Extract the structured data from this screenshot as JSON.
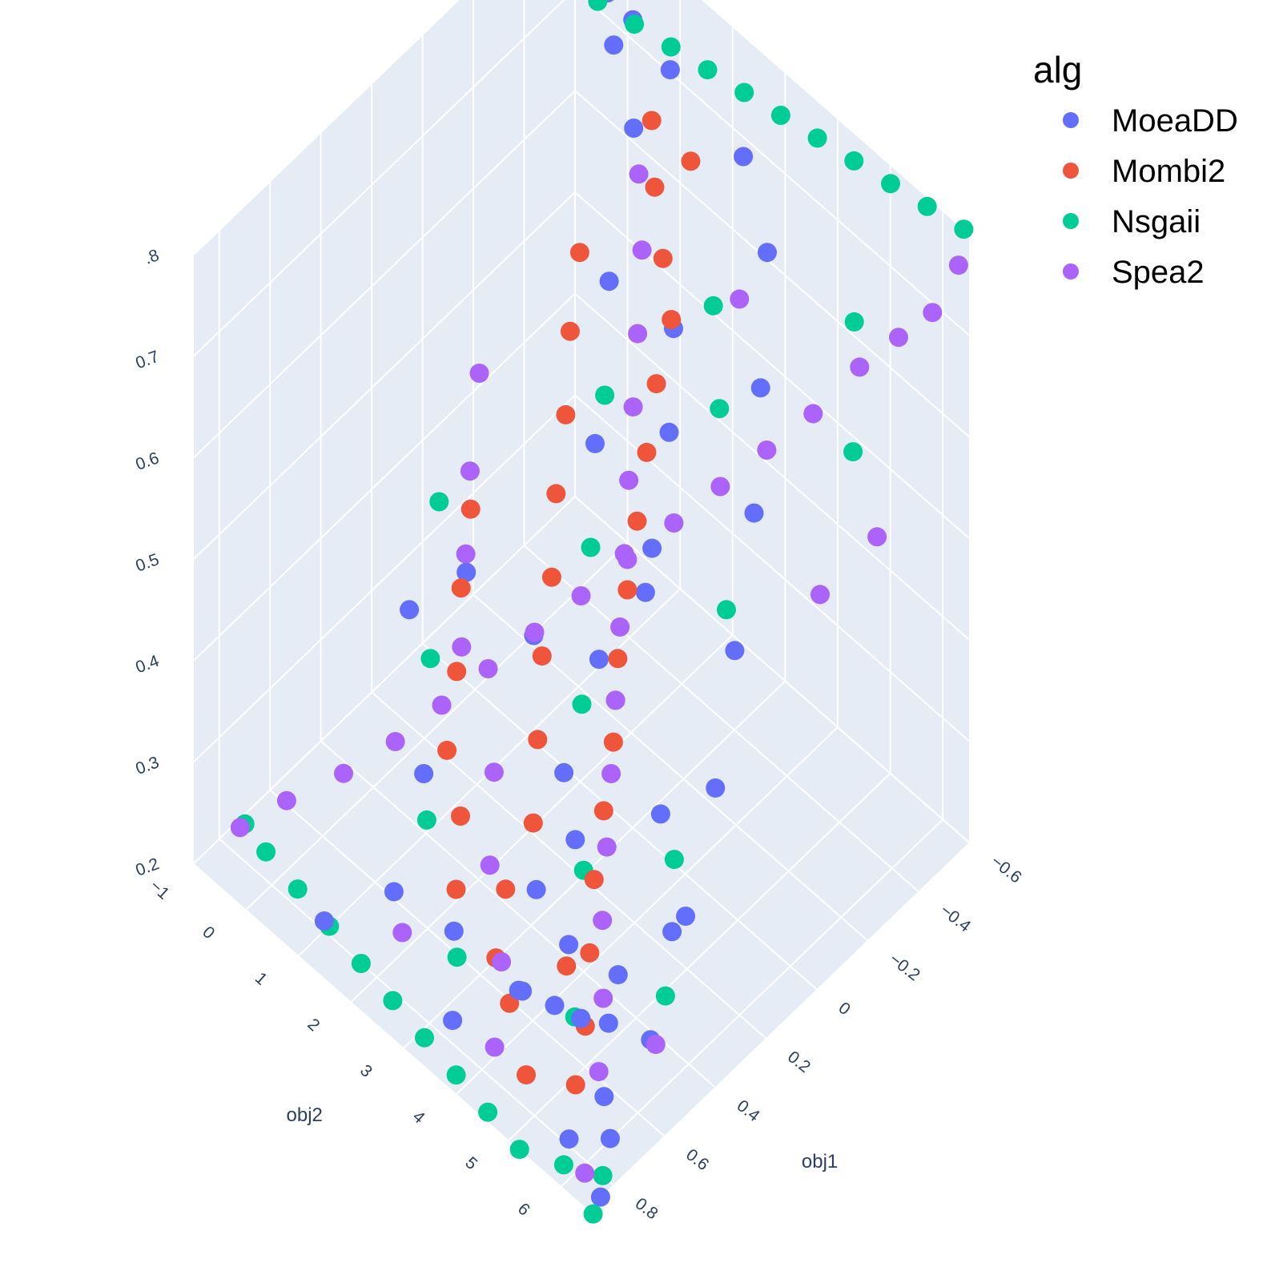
{
  "chart_data": {
    "type": "scatter3d",
    "legend": {
      "title": "alg",
      "placement": "top-right",
      "items": [
        {
          "label": "MoeaDD",
          "color": "#636efa"
        },
        {
          "label": "Mombi2",
          "color": "#ef553b"
        },
        {
          "label": "Nsgaii",
          "color": "#00cc96"
        },
        {
          "label": "Spea2",
          "color": "#ab63fa"
        }
      ]
    },
    "x_axis": {
      "title": "obj1",
      "range": [
        -0.6,
        0.9
      ],
      "ticks": [
        "−0.6",
        "−0.4",
        "−0.2",
        "0",
        "0.2",
        "0.4",
        "0.6",
        "0.8"
      ],
      "tick_values": [
        -0.6,
        -0.4,
        -0.2,
        0,
        0.2,
        0.4,
        0.6,
        0.8
      ]
    },
    "y_axis": {
      "title": "obj2",
      "range": [
        -1,
        6.5
      ],
      "ticks": [
        "−1",
        "0",
        "1",
        "2",
        "3",
        "4",
        "5",
        "6"
      ],
      "tick_values": [
        -1,
        0,
        1,
        2,
        3,
        4,
        5,
        6
      ]
    },
    "z_axis": {
      "title": "",
      "range": [
        0.2,
        0.8
      ],
      "ticks": [
        "0.2",
        "0.3",
        "0.4",
        "0.5",
        "0.6",
        "0.7",
        ".8"
      ],
      "tick_values": [
        0.2,
        0.3,
        0.4,
        0.5,
        0.6,
        0.7,
        0.8
      ]
    },
    "background": "#e5ecf6",
    "grid": true,
    "series": [
      {
        "name": "MoeaDD",
        "color": "#636efa",
        "points": [
          [
            0.85,
            6.5,
            0.2
          ],
          [
            0.75,
            6.2,
            0.22
          ],
          [
            0.65,
            5.6,
            0.21
          ],
          [
            0.55,
            5.2,
            0.24
          ],
          [
            0.7,
            4.9,
            0.28
          ],
          [
            0.8,
            4.7,
            0.31
          ],
          [
            0.45,
            4.9,
            0.25
          ],
          [
            0.3,
            5.2,
            0.27
          ],
          [
            0.2,
            4.5,
            0.33
          ],
          [
            0.5,
            4.2,
            0.26
          ],
          [
            0.6,
            3.8,
            0.22
          ],
          [
            0.35,
            3.6,
            0.3
          ],
          [
            0.15,
            3.4,
            0.38
          ],
          [
            -0.05,
            3.0,
            0.42
          ],
          [
            0.05,
            2.6,
            0.36
          ],
          [
            -0.2,
            2.4,
            0.4
          ],
          [
            -0.35,
            2.0,
            0.46
          ],
          [
            -0.45,
            1.6,
            0.52
          ],
          [
            0.25,
            2.9,
            0.31
          ],
          [
            0.4,
            3.1,
            0.24
          ],
          [
            -0.1,
            1.8,
            0.5
          ],
          [
            -0.3,
            1.1,
            0.58
          ],
          [
            -0.5,
            0.6,
            0.66
          ],
          [
            -0.6,
            0.1,
            0.72
          ],
          [
            0.1,
            1.6,
            0.35
          ],
          [
            0.6,
            2.5,
            0.22
          ],
          [
            0.75,
            3.2,
            0.2
          ],
          [
            0.85,
            5.9,
            0.23
          ],
          [
            0.7,
            5.4,
            0.29
          ],
          [
            0.55,
            6.0,
            0.26
          ],
          [
            0.35,
            5.7,
            0.32
          ],
          [
            0.15,
            5.3,
            0.38
          ],
          [
            -0.05,
            4.7,
            0.44
          ],
          [
            -0.25,
            4.1,
            0.5
          ],
          [
            -0.4,
            3.5,
            0.56
          ],
          [
            -0.55,
            2.9,
            0.63
          ],
          [
            -0.58,
            2.3,
            0.69
          ],
          [
            -0.52,
            1.2,
            0.74
          ],
          [
            -0.48,
            0.2,
            0.78
          ],
          [
            -0.38,
            0.8,
            0.78
          ],
          [
            0.45,
            1.2,
            0.28
          ],
          [
            0.2,
            0.8,
            0.4
          ],
          [
            0.65,
            1.6,
            0.23
          ],
          [
            0.8,
            1.0,
            0.21
          ],
          [
            0.3,
            0.2,
            0.36
          ]
        ]
      },
      {
        "name": "Mombi2",
        "color": "#ef553b",
        "points": [
          [
            0.7,
            5.3,
            0.22
          ],
          [
            0.6,
            5.0,
            0.24
          ],
          [
            0.5,
            4.6,
            0.27
          ],
          [
            0.4,
            4.2,
            0.3
          ],
          [
            0.3,
            3.9,
            0.33
          ],
          [
            0.55,
            4.4,
            0.26
          ],
          [
            0.2,
            3.6,
            0.36
          ],
          [
            0.1,
            3.2,
            0.4
          ],
          [
            0.0,
            2.9,
            0.43
          ],
          [
            -0.1,
            2.6,
            0.46
          ],
          [
            -0.2,
            2.3,
            0.49
          ],
          [
            -0.3,
            2.0,
            0.52
          ],
          [
            -0.4,
            1.8,
            0.55
          ],
          [
            -0.45,
            1.4,
            0.58
          ],
          [
            -0.5,
            1.0,
            0.62
          ],
          [
            0.35,
            2.8,
            0.28
          ],
          [
            0.25,
            2.4,
            0.32
          ],
          [
            0.15,
            2.0,
            0.36
          ],
          [
            0.05,
            1.7,
            0.4
          ],
          [
            -0.05,
            1.3,
            0.44
          ],
          [
            -0.15,
            1.0,
            0.48
          ],
          [
            -0.25,
            0.6,
            0.52
          ],
          [
            -0.35,
            0.3,
            0.56
          ],
          [
            0.55,
            2.3,
            0.24
          ],
          [
            0.45,
            1.9,
            0.27
          ],
          [
            0.6,
            3.3,
            0.23
          ],
          [
            0.5,
            3.0,
            0.26
          ],
          [
            0.75,
            4.6,
            0.21
          ],
          [
            0.65,
            3.8,
            0.22
          ],
          [
            0.4,
            1.4,
            0.3
          ],
          [
            0.3,
            1.1,
            0.34
          ],
          [
            0.2,
            0.7,
            0.38
          ],
          [
            0.1,
            0.4,
            0.42
          ],
          [
            -0.55,
            0.7,
            0.66
          ],
          [
            -0.58,
            1.3,
            0.64
          ]
        ]
      },
      {
        "name": "Nsgaii",
        "color": "#00cc96",
        "points": [
          [
            0.9,
            6.6,
            0.2
          ],
          [
            0.8,
            6.3,
            0.2
          ],
          [
            0.85,
            5.8,
            0.2
          ],
          [
            0.9,
            5.2,
            0.2
          ],
          [
            0.88,
            4.5,
            0.2
          ],
          [
            0.86,
            3.8,
            0.2
          ],
          [
            0.84,
            3.1,
            0.2
          ],
          [
            0.82,
            2.4,
            0.2
          ],
          [
            0.8,
            1.7,
            0.2
          ],
          [
            0.78,
            1.0,
            0.2
          ],
          [
            0.76,
            0.3,
            0.2
          ],
          [
            0.74,
            -0.4,
            0.2
          ],
          [
            0.72,
            -0.9,
            0.2
          ],
          [
            -0.6,
            6.4,
            0.8
          ],
          [
            -0.58,
            5.8,
            0.8
          ],
          [
            -0.56,
            5.2,
            0.8
          ],
          [
            -0.54,
            4.6,
            0.8
          ],
          [
            -0.52,
            4.0,
            0.8
          ],
          [
            -0.5,
            3.4,
            0.8
          ],
          [
            -0.48,
            2.8,
            0.8
          ],
          [
            -0.46,
            2.2,
            0.8
          ],
          [
            -0.44,
            1.6,
            0.8
          ],
          [
            -0.42,
            1.0,
            0.8
          ],
          [
            -0.4,
            0.4,
            0.8
          ],
          [
            0.6,
            4.8,
            0.24
          ],
          [
            0.4,
            4.0,
            0.3
          ],
          [
            0.2,
            3.0,
            0.37
          ],
          [
            0.0,
            2.2,
            0.44
          ],
          [
            -0.2,
            1.5,
            0.51
          ],
          [
            -0.4,
            2.6,
            0.6
          ],
          [
            0.5,
            1.5,
            0.26
          ],
          [
            0.3,
            0.6,
            0.33
          ],
          [
            0.1,
            -0.2,
            0.4
          ],
          [
            -0.3,
            3.2,
            0.55
          ],
          [
            0.65,
            2.8,
            0.22
          ],
          [
            -0.1,
            4.3,
            0.45
          ],
          [
            0.25,
            5.0,
            0.32
          ],
          [
            0.45,
            5.8,
            0.27
          ],
          [
            -0.5,
            4.8,
            0.66
          ],
          [
            -0.35,
            5.5,
            0.6
          ]
        ]
      },
      {
        "name": "Spea2",
        "color": "#ab63fa",
        "points": [
          [
            0.78,
            -0.7,
            0.22
          ],
          [
            0.7,
            -0.2,
            0.25
          ],
          [
            0.6,
            0.4,
            0.28
          ],
          [
            0.5,
            0.9,
            0.31
          ],
          [
            0.4,
            1.3,
            0.34
          ],
          [
            0.3,
            1.7,
            0.37
          ],
          [
            0.2,
            2.1,
            0.4
          ],
          [
            0.1,
            2.5,
            0.43
          ],
          [
            0.0,
            2.9,
            0.46
          ],
          [
            -0.1,
            3.3,
            0.49
          ],
          [
            -0.2,
            3.7,
            0.52
          ],
          [
            -0.3,
            4.1,
            0.55
          ],
          [
            -0.4,
            4.5,
            0.58
          ],
          [
            -0.5,
            4.9,
            0.62
          ],
          [
            -0.55,
            5.4,
            0.66
          ],
          [
            -0.58,
            5.9,
            0.7
          ],
          [
            -0.6,
            6.3,
            0.76
          ],
          [
            0.65,
            5.5,
            0.23
          ],
          [
            0.55,
            5.1,
            0.26
          ],
          [
            0.45,
            4.6,
            0.29
          ],
          [
            0.35,
            4.2,
            0.32
          ],
          [
            0.25,
            3.8,
            0.35
          ],
          [
            0.15,
            3.4,
            0.38
          ],
          [
            0.05,
            3.0,
            0.41
          ],
          [
            -0.05,
            2.6,
            0.44
          ],
          [
            -0.15,
            2.2,
            0.47
          ],
          [
            -0.25,
            1.8,
            0.5
          ],
          [
            -0.35,
            1.4,
            0.53
          ],
          [
            -0.45,
            1.0,
            0.57
          ],
          [
            -0.52,
            0.6,
            0.61
          ],
          [
            0.75,
            4.0,
            0.21
          ],
          [
            0.62,
            3.5,
            0.24
          ],
          [
            0.5,
            2.7,
            0.27
          ],
          [
            0.38,
            2.2,
            0.31
          ],
          [
            0.26,
            1.0,
            0.35
          ],
          [
            0.14,
            0.5,
            0.39
          ],
          [
            0.02,
            0.0,
            0.42
          ],
          [
            -0.12,
            -0.5,
            0.46
          ],
          [
            0.55,
            6.1,
            0.26
          ],
          [
            -0.2,
            5.6,
            0.5
          ],
          [
            -0.3,
            6.2,
            0.56
          ],
          [
            0.7,
            2.0,
            0.22
          ],
          [
            0.85,
            6.2,
            0.21
          ],
          [
            -0.42,
            3.0,
            0.62
          ]
        ]
      }
    ]
  }
}
